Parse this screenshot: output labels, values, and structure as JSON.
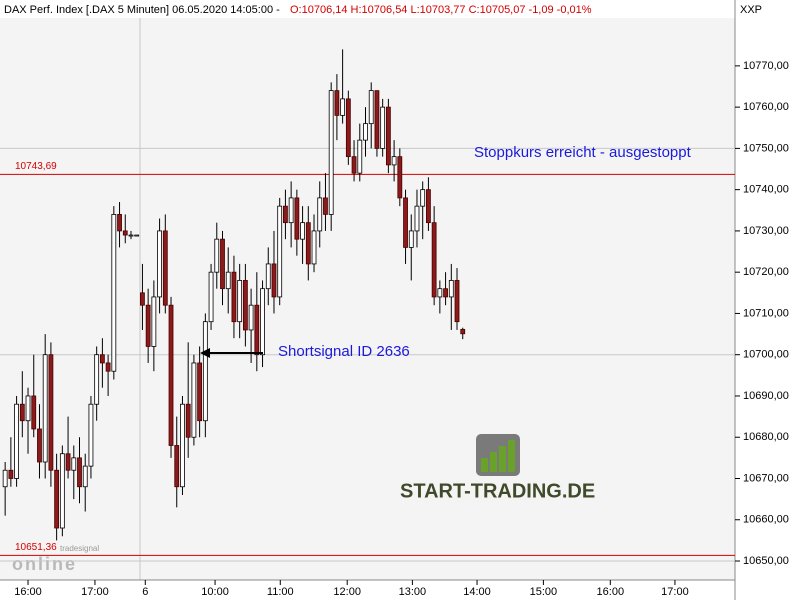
{
  "header": {
    "instrument": "DAX Perf. Index [.DAX  5 Minuten] 06.05.2020 14:05:00 -",
    "quote": "O:10706,14 H:10706,54 L:10703,77 C:10705,07 -1,09 -0,01%",
    "axis_code": "XXP"
  },
  "watermark": {
    "brand": "tradesignal",
    "brand2": "online",
    "site": "START-TRADING.DE"
  },
  "chart_data": {
    "type": "candlestick",
    "up_color": "#ffffff",
    "down_color": "#8b1a1a",
    "open": [
      10668,
      10672,
      10670,
      10688,
      10684,
      10690,
      10682,
      10674,
      10700,
      10672,
      10658,
      10676,
      10672,
      10675,
      10668,
      10673,
      10688,
      10700,
      10698,
      10696,
      10734,
      10730,
      10729,
      10729,
      10715,
      10712,
      10702,
      10714,
      10730,
      10712,
      10678,
      10668,
      10688,
      10680,
      10698,
      10684,
      10708,
      10720,
      10728,
      10716,
      10720,
      10708,
      10718,
      10706,
      10712,
      10700,
      10716,
      10722,
      10714,
      10736,
      10732,
      10738,
      10728,
      10732,
      10722,
      10730,
      10738,
      10734,
      10764,
      10758,
      10762,
      10748,
      10744,
      10752,
      10756,
      10764,
      10750,
      10760,
      10746,
      10748,
      10738,
      10726,
      10730,
      10736,
      10740,
      10732,
      10714,
      10716,
      10714,
      10718,
      10706.14
    ],
    "high": [
      10674,
      10680,
      10690,
      10696,
      10692,
      10700,
      10688,
      10705,
      10703,
      10676,
      10678,
      10685,
      10678,
      10680,
      10676,
      10690,
      10702,
      10704,
      10700,
      10736,
      10737,
      10734,
      10730,
      10729,
      10722,
      10716,
      10718,
      10733,
      10734,
      10714,
      10685,
      10690,
      10703,
      10700,
      10702,
      10710,
      10722,
      10732,
      10730,
      10726,
      10724,
      10722,
      10722,
      10716,
      10720,
      10718,
      10726,
      10730,
      10738,
      10740,
      10742,
      10740,
      10736,
      10736,
      10734,
      10742,
      10744,
      10766,
      10768,
      10774,
      10764,
      10752,
      10756,
      10760,
      10766,
      10764,
      10762,
      10762,
      10752,
      10750,
      10740,
      10734,
      10740,
      10742,
      10743,
      10736,
      10718,
      10720,
      10722,
      10721,
      10706.54
    ],
    "low": [
      10661,
      10668,
      10668,
      10680,
      10676,
      10680,
      10670,
      10670,
      10668,
      10655,
      10656,
      10670,
      10665,
      10664,
      10662,
      10670,
      10684,
      10692,
      10690,
      10694,
      10726,
      10727,
      10728,
      10729,
      10706,
      10698,
      10696,
      10710,
      10710,
      10675,
      10663,
      10666,
      10675,
      10678,
      10680,
      10680,
      10706,
      10716,
      10712,
      10710,
      10704,
      10704,
      10702,
      10698,
      10696,
      10697,
      10712,
      10710,
      10712,
      10728,
      10726,
      10724,
      10722,
      10718,
      10720,
      10726,
      10730,
      10730,
      10752,
      10756,
      10746,
      10742,
      10742,
      10748,
      10750,
      10748,
      10748,
      10744,
      10742,
      10736,
      10722,
      10718,
      10726,
      10728,
      10730,
      10712,
      10710,
      10712,
      10706,
      10706,
      10703.77
    ],
    "close": [
      10672,
      10670,
      10688,
      10684,
      10690,
      10682,
      10674,
      10700,
      10672,
      10658,
      10676,
      10672,
      10675,
      10668,
      10673,
      10688,
      10700,
      10698,
      10696,
      10734,
      10730,
      10729,
      10729,
      10729,
      10712,
      10702,
      10714,
      10730,
      10712,
      10678,
      10668,
      10688,
      10680,
      10698,
      10684,
      10708,
      10720,
      10728,
      10716,
      10720,
      10708,
      10718,
      10706,
      10712,
      10700,
      10716,
      10722,
      10714,
      10736,
      10732,
      10738,
      10728,
      10732,
      10722,
      10730,
      10738,
      10734,
      10764,
      10758,
      10762,
      10748,
      10744,
      10752,
      10756,
      10764,
      10750,
      10760,
      10746,
      10748,
      10738,
      10726,
      10730,
      10736,
      10740,
      10732,
      10714,
      10716,
      10714,
      10718,
      10708,
      10705.07
    ],
    "xlim": [
      -0.9,
      127.6
    ],
    "xticks": [
      {
        "value": 4,
        "label": "16:00"
      },
      {
        "value": 15.7,
        "label": "17:00"
      },
      {
        "value": 24.5,
        "label": "6"
      },
      {
        "value": 36.7,
        "label": "10:00"
      },
      {
        "value": 48.1,
        "label": "11:00"
      },
      {
        "value": 59.8,
        "label": "12:00"
      },
      {
        "value": 71.2,
        "label": "13:00"
      },
      {
        "value": 82.5,
        "label": "14:00"
      },
      {
        "value": 94.1,
        "label": "15:00"
      },
      {
        "value": 105.8,
        "label": "16:00"
      },
      {
        "value": 117.1,
        "label": "17:00"
      }
    ],
    "ylim": [
      10645.4,
      10781.6
    ],
    "yticks": [
      {
        "value": 10650,
        "label": "10650,00"
      },
      {
        "value": 10660,
        "label": "10660,00"
      },
      {
        "value": 10670,
        "label": "10670,00"
      },
      {
        "value": 10680,
        "label": "10680,00"
      },
      {
        "value": 10690,
        "label": "10690,00"
      },
      {
        "value": 10700,
        "label": "10700,00"
      },
      {
        "value": 10710,
        "label": "10710,00"
      },
      {
        "value": 10720,
        "label": "10720,00"
      },
      {
        "value": 10730,
        "label": "10730,00"
      },
      {
        "value": 10740,
        "label": "10740,00"
      },
      {
        "value": 10750,
        "label": "10750,00"
      },
      {
        "value": 10760,
        "label": "10760,00"
      },
      {
        "value": 10770,
        "label": "10770,00"
      }
    ],
    "grid_every": 50,
    "levels": [
      {
        "value": 10743.69,
        "label": "10743,69",
        "color": "#d40000"
      },
      {
        "value": 10651.36,
        "label": "10651,36",
        "color": "#d40000"
      }
    ],
    "annotations": [
      "Stoppkurs erreicht - ausgestoppt",
      "Shortsignal ID 2636"
    ]
  }
}
